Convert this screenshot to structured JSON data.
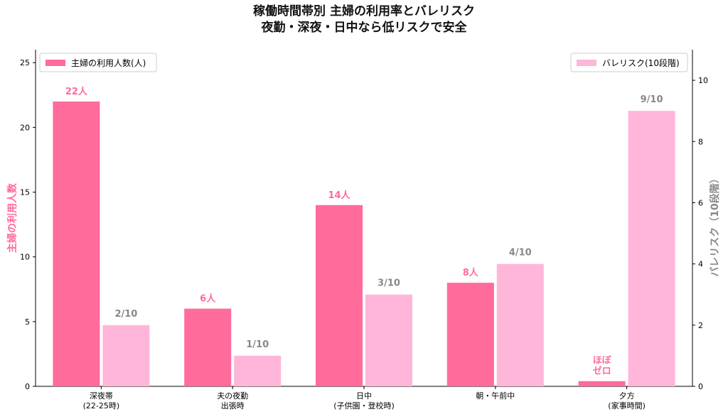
{
  "chart_data": {
    "type": "bar",
    "title_line1": "稼働時間帯別 主婦の利用率とバレリスク",
    "title_line2": "夜勤・深夜・日中なら低リスクで安全",
    "categories": [
      [
        "深夜帯",
        "(22-25時)"
      ],
      [
        "夫の夜勤",
        "出張時"
      ],
      [
        "日中",
        "(子供園・登校時)"
      ],
      [
        "朝・午前中"
      ],
      [
        "夕方",
        "(家事時間)"
      ]
    ],
    "series": [
      {
        "name": "主婦の利用人数(人)",
        "axis": "left",
        "color": "#ff6b9a",
        "values": [
          22,
          6,
          14,
          8,
          0.4
        ],
        "labels": [
          [
            "22人"
          ],
          [
            "6人"
          ],
          [
            "14人"
          ],
          [
            "8人"
          ],
          [
            "ほぼ",
            "ゼロ"
          ]
        ]
      },
      {
        "name": "バレリスク(10段階)",
        "axis": "right",
        "color": "#ffb6d9",
        "values": [
          2,
          1,
          3,
          4,
          9
        ],
        "labels": [
          [
            "2/10"
          ],
          [
            "1/10"
          ],
          [
            "3/10"
          ],
          [
            "4/10"
          ],
          [
            "9/10"
          ]
        ]
      }
    ],
    "ylabel_left": "主婦の利用人数",
    "ylabel_right": "バレリスク（10段階）",
    "ylim_left": [
      0,
      26
    ],
    "yticks_left": [
      0,
      5,
      10,
      15,
      20,
      25
    ],
    "ylim_right": [
      0,
      11
    ],
    "yticks_right": [
      0,
      2,
      4,
      6,
      8,
      10
    ],
    "legend_left_position": "top-left",
    "legend_right_position": "top-right",
    "label_colors": {
      "left": "#ff6b9a",
      "right": "#888888"
    },
    "grid": false
  }
}
